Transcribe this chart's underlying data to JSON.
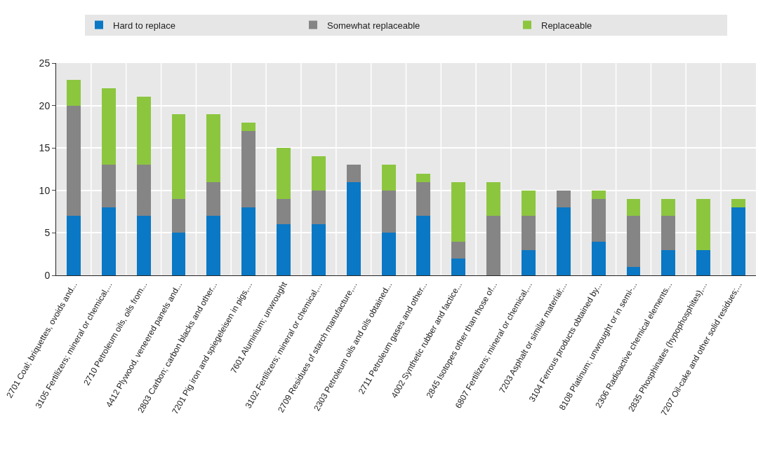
{
  "chart_data": {
    "type": "bar",
    "stacked": true,
    "categories": [
      "2701 Coal; briquettes, ovoids and...",
      "3105 Fertilizers; mineral or chemical,...",
      "2710 Petroleum oils, oils from...",
      "4412 Plywood, veneered panels and...",
      "2803 Carbon; carbon blacks and other...",
      "7201 Pig iron and spiegeleisen in pigs,...",
      "7601 Aluminium; unwrought",
      "3102 Fertilizers; mineral or chemical,...",
      "2709 Residues of starch manufacture,...",
      "2303 Petroleum oils and oils obtained...",
      "2711 Petroleum gases and other...",
      "4002 Synthetic rubber and factice...",
      "2845 Isotopes other than those of...",
      "6807 Fertilizers; mineral or chemical,...",
      "7203 Asphalt or similar material;...",
      "3104 Ferrous products obtained by...",
      "8108 Platinum; unwrought or in semi-...",
      "2306 Radioactive chemical elements...",
      "2835 Phosphinates (hypophosphites),...",
      "7207 Oil-cake and other solid residues;..."
    ],
    "series": [
      {
        "name": "Hard to replace",
        "color": "#0a78c4",
        "values": [
          7,
          8,
          7,
          5,
          7,
          8,
          6,
          6,
          11,
          5,
          7,
          2,
          0,
          3,
          8,
          4,
          1,
          3,
          3,
          8
        ]
      },
      {
        "name": "Somewhat replaceable",
        "color": "#858585",
        "values": [
          13,
          5,
          6,
          4,
          4,
          9,
          3,
          4,
          2,
          5,
          4,
          2,
          7,
          4,
          2,
          5,
          6,
          4,
          0,
          0
        ]
      },
      {
        "name": "Replaceable",
        "color": "#8cc63f",
        "values": [
          3,
          9,
          8,
          10,
          8,
          1,
          6,
          4,
          0,
          3,
          1,
          7,
          4,
          3,
          0,
          1,
          2,
          2,
          6,
          1
        ]
      }
    ],
    "ylim": [
      0,
      25
    ],
    "yticks": [
      0,
      5,
      10,
      15,
      20,
      25
    ],
    "grid": true,
    "legend": "top"
  }
}
